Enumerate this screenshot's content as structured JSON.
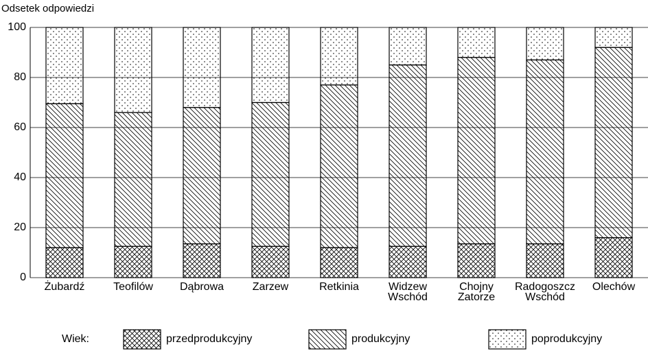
{
  "chart_data": {
    "type": "stacked_bar",
    "y_axis_label": "Odsetek odpowiedzi",
    "categories": [
      "Żubardź",
      "Teofilów",
      "Dąbrowa",
      "Zarzew",
      "Retkinia",
      "Widzew\nWschód",
      "Chojny\nZatorze",
      "Radogoszcz\nWschód",
      "Olechów"
    ],
    "series": [
      {
        "name": "przedprodukcyjny",
        "color": "#000000",
        "pattern": "crosshatch",
        "values": [
          12,
          12.5,
          13.5,
          12.5,
          12,
          12.5,
          13.5,
          13.5,
          16
        ]
      },
      {
        "name": "produkcyjny",
        "color": "#000000",
        "pattern": "diagonal",
        "values": [
          57.5,
          53.5,
          54.5,
          57.5,
          65,
          72.5,
          74.5,
          73.5,
          76
        ]
      },
      {
        "name": "poprodukcyjny",
        "color": "#000000",
        "pattern": "dots",
        "values": [
          30.5,
          34,
          32,
          30,
          23,
          15,
          12,
          13,
          8
        ]
      }
    ],
    "legend_title": "Wiek:",
    "ylim": [
      0,
      100
    ],
    "yticks": [
      0,
      20,
      40,
      60,
      80,
      100
    ],
    "grid": true
  }
}
